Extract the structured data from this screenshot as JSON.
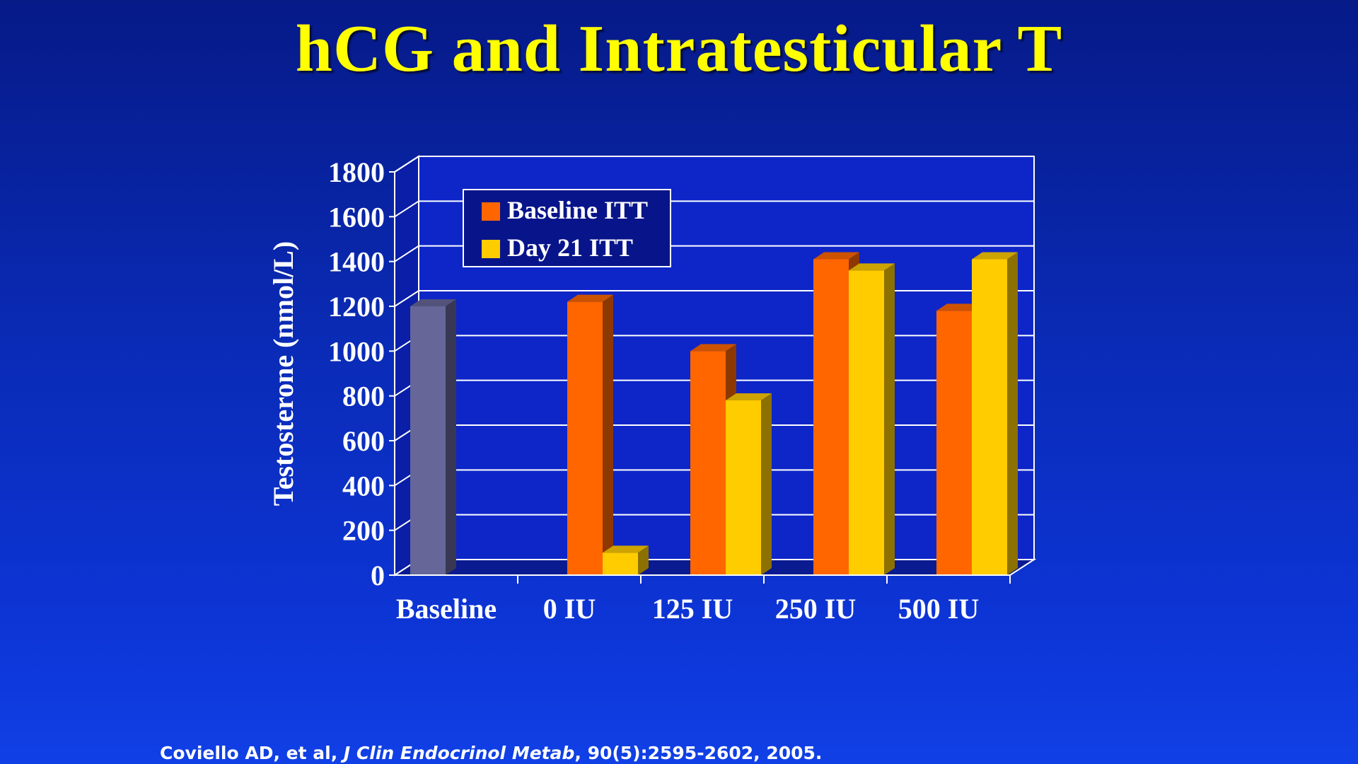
{
  "slide": {
    "title": "hCG and Intratesticular T",
    "title_color": "#ffff00",
    "citation": {
      "authors": "Coviello AD, et al, ",
      "journal": "J Clin Endocrinol Metab",
      "details": ", 90(5):2595-2602, 2005."
    }
  },
  "chart_data": {
    "type": "bar",
    "style": "3d-clustered",
    "title": "",
    "ylabel": "Testosterone (nmol/L)",
    "xlabel": "",
    "ylim": [
      0,
      1800
    ],
    "yticks": [
      0,
      200,
      400,
      600,
      800,
      1000,
      1200,
      1400,
      1600,
      1800
    ],
    "grid": true,
    "legend_position": "top-left",
    "categories": [
      "Baseline",
      "0 IU",
      "125 IU",
      "250 IU",
      "500 IU"
    ],
    "baseline_bar": {
      "category": "Baseline",
      "value": 1200,
      "color": "#666699"
    },
    "series": [
      {
        "name": "Baseline ITT",
        "color": "#ff6600",
        "values": [
          null,
          1220,
          1000,
          1410,
          1180
        ]
      },
      {
        "name": "Day 21 ITT",
        "color": "#ffcc00",
        "values": [
          null,
          100,
          780,
          1360,
          1410
        ]
      }
    ]
  }
}
